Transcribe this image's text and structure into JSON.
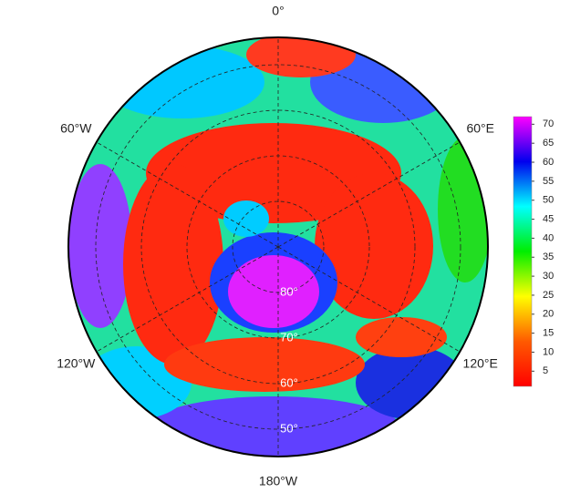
{
  "map": {
    "lon_labels": [
      {
        "value": 0,
        "label": "0°"
      },
      {
        "value": 60,
        "label": "60°E"
      },
      {
        "value": 120,
        "label": "120°E"
      },
      {
        "value": 180,
        "label": "180°W"
      },
      {
        "value": -120,
        "label": "120°W"
      },
      {
        "value": -60,
        "label": "60°W"
      }
    ],
    "lat_labels": [
      {
        "value": 80,
        "label": "80°"
      },
      {
        "value": 70,
        "label": "70°"
      },
      {
        "value": 60,
        "label": "60°"
      },
      {
        "value": 50,
        "label": "50°"
      }
    ],
    "lat_edge": 44,
    "colorbar": {
      "clim": [
        1,
        72
      ],
      "ticks": [
        5,
        10,
        15,
        20,
        25,
        30,
        35,
        40,
        45,
        50,
        55,
        60,
        65,
        70
      ],
      "colors": [
        "#ff0000",
        "#ff5a00",
        "#ffff00",
        "#00ee00",
        "#00ffff",
        "#0000ee",
        "#ff00ff"
      ]
    }
  }
}
